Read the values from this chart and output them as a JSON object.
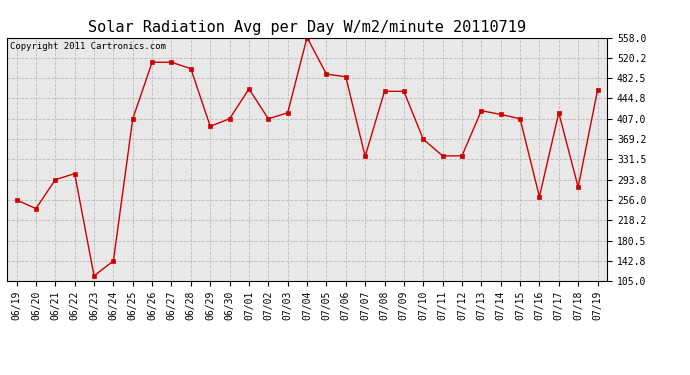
{
  "title": "Solar Radiation Avg per Day W/m2/minute 20110719",
  "copyright": "Copyright 2011 Cartronics.com",
  "dates": [
    "06/19",
    "06/20",
    "06/21",
    "06/22",
    "06/23",
    "06/24",
    "06/25",
    "06/26",
    "06/27",
    "06/28",
    "06/29",
    "06/30",
    "07/01",
    "07/02",
    "07/03",
    "07/04",
    "07/05",
    "07/06",
    "07/07",
    "07/08",
    "07/09",
    "07/10",
    "07/11",
    "07/12",
    "07/13",
    "07/14",
    "07/15",
    "07/16",
    "07/17",
    "07/18",
    "07/19"
  ],
  "values": [
    256.0,
    240.0,
    293.8,
    305.0,
    115.0,
    142.8,
    407.0,
    512.0,
    512.0,
    500.0,
    393.0,
    407.0,
    462.5,
    407.0,
    418.0,
    558.0,
    490.0,
    485.0,
    337.0,
    458.0,
    458.0,
    369.0,
    338.0,
    338.0,
    422.0,
    415.0,
    407.0,
    262.0,
    418.0,
    280.0,
    460.0
  ],
  "ylim": [
    105.0,
    558.0
  ],
  "yticks": [
    105.0,
    142.8,
    180.5,
    218.2,
    256.0,
    293.8,
    331.5,
    369.2,
    407.0,
    444.8,
    482.5,
    520.2,
    558.0
  ],
  "line_color": "#cc0000",
  "marker": "s",
  "marker_size": 2.5,
  "bg_color": "#ffffff",
  "plot_bg_color": "#e8e8e8",
  "grid_color": "#bbbbbb",
  "title_fontsize": 11,
  "tick_fontsize": 7,
  "copyright_fontsize": 6.5
}
